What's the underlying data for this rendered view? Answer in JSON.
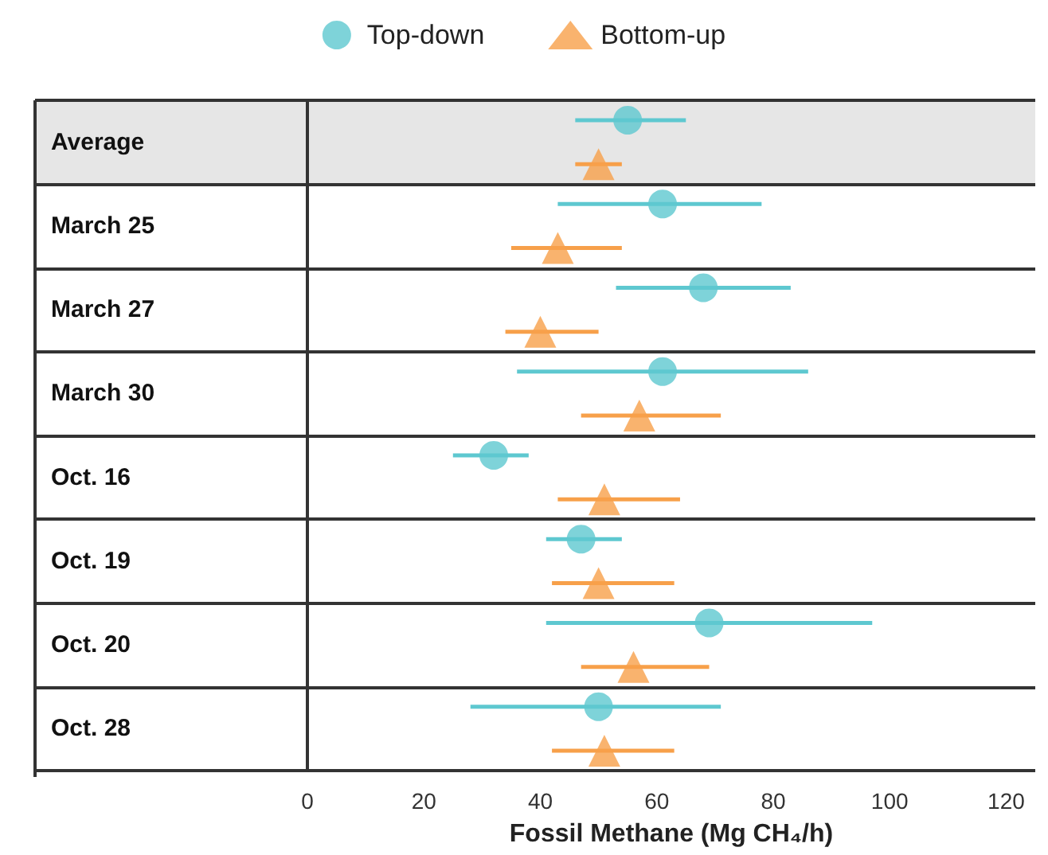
{
  "chart_data": {
    "type": "scatter",
    "orientation": "horizontal",
    "xlabel": "Fossil Methane (Mg CH₄/h)",
    "categories": [
      "Average",
      "March 25",
      "March 27",
      "March 30",
      "Oct. 16",
      "Oct. 19",
      "Oct. 20",
      "Oct. 28"
    ],
    "series": [
      {
        "name": "Top-down",
        "color": "#5ec8d0",
        "marker": "circle",
        "values": [
          55,
          61,
          68,
          61,
          32,
          47,
          69,
          50
        ],
        "errors": [
          [
            46,
            65
          ],
          [
            43,
            78
          ],
          [
            53,
            83
          ],
          [
            36,
            86
          ],
          [
            25,
            38
          ],
          [
            41,
            54
          ],
          [
            41,
            97
          ],
          [
            28,
            71
          ]
        ]
      },
      {
        "name": "Bottom-up",
        "color": "#f7a04a",
        "marker": "triangle",
        "values": [
          50,
          43,
          40,
          57,
          51,
          50,
          56,
          51
        ],
        "errors": [
          [
            46,
            54
          ],
          [
            35,
            54
          ],
          [
            34,
            50
          ],
          [
            47,
            71
          ],
          [
            43,
            64
          ],
          [
            42,
            63
          ],
          [
            47,
            69
          ],
          [
            42,
            63
          ]
        ]
      }
    ],
    "bands": [
      {
        "axis": "y",
        "from": "Average",
        "to": "Average",
        "color": "#e6e6e6"
      }
    ],
    "xlim": [
      0,
      125
    ],
    "xticks": [
      0,
      20,
      40,
      60,
      80,
      100,
      120
    ],
    "grid": "y",
    "legend": "top"
  }
}
